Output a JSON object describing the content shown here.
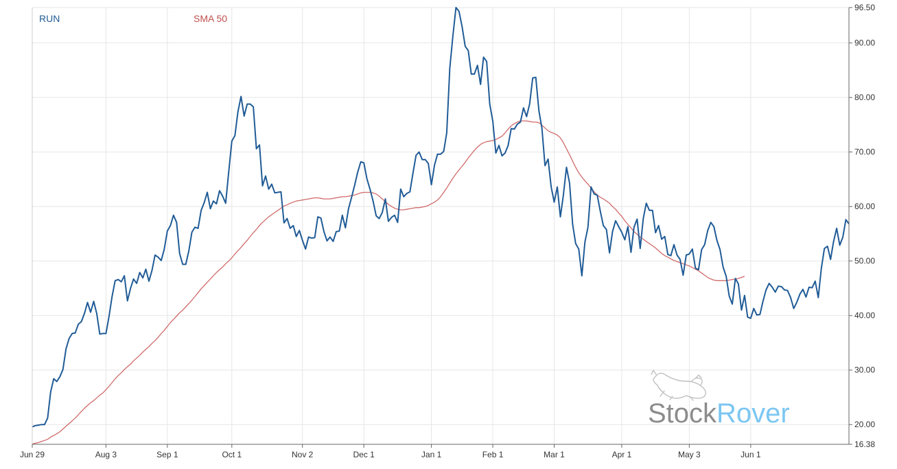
{
  "chart_data": {
    "type": "line",
    "ticker_label": "RUN",
    "x_tick_labels": [
      "Jun 29",
      "Aug 3",
      "Sep 1",
      "Oct 1",
      "Nov 2",
      "Dec 1",
      "Jan 1",
      "Feb 1",
      "Mar 1",
      "Apr 1",
      "May 3",
      "Jun 1"
    ],
    "y_tick_labels": [
      "96.50",
      "90.00",
      "80.00",
      "70.00",
      "60.00",
      "50.00",
      "40.00",
      "30.00",
      "20.00",
      "16.38"
    ],
    "ylim": [
      16.38,
      96.5
    ],
    "y_ticks": [
      96.5,
      90,
      80,
      70,
      60,
      50,
      40,
      30,
      20,
      16.38
    ],
    "grid": true,
    "legend_placement": "top-left",
    "series": [
      {
        "name": "RUN",
        "color": "#1f5b96",
        "values": [
          19.6,
          19.8,
          19.9,
          20.0,
          20.0,
          21.2,
          26.0,
          28.4,
          27.9,
          28.8,
          30.1,
          33.9,
          35.8,
          36.7,
          36.8,
          38.4,
          38.9,
          40.4,
          42.4,
          40.6,
          42.6,
          40.4,
          36.6,
          36.7,
          36.7,
          39.8,
          43.5,
          46.4,
          46.6,
          46.2,
          47.3,
          42.7,
          45.0,
          46.7,
          45.9,
          47.9,
          46.9,
          48.5,
          46.3,
          48.3,
          51.1,
          50.7,
          50.1,
          52.2,
          55.5,
          56.5,
          58.4,
          57.1,
          51.4,
          49.4,
          49.4,
          51.9,
          55.3,
          56.2,
          56.0,
          59.3,
          60.7,
          62.6,
          59.6,
          61.0,
          60.5,
          62.9,
          61.9,
          60.6,
          66.4,
          72.0,
          73.0,
          77.4,
          80.2,
          76.6,
          78.8,
          78.8,
          78.3,
          70.6,
          71.3,
          63.8,
          65.6,
          63.2,
          64.1,
          62.5,
          62.6,
          62.7,
          57.0,
          57.8,
          56.0,
          56.5,
          54.5,
          55.6,
          53.8,
          52.2,
          54.4,
          54.2,
          54.3,
          58.1,
          57.9,
          55.4,
          53.7,
          54.4,
          53.6,
          55.4,
          55.5,
          58.4,
          56.1,
          59.6,
          61.7,
          63.9,
          66.3,
          68.2,
          68.0,
          65.1,
          63.2,
          61.0,
          58.3,
          57.8,
          58.9,
          61.4,
          57.3,
          58.0,
          58.4,
          57.1,
          63.2,
          61.8,
          62.4,
          62.7,
          66.1,
          69.4,
          70.0,
          68.6,
          68.6,
          67.9,
          64.0,
          67.6,
          69.6,
          69.6,
          70.1,
          73.5,
          85.4,
          91.3,
          96.5,
          95.8,
          93.0,
          89.4,
          88.6,
          84.3,
          84.3,
          85.9,
          82.4,
          87.4,
          86.6,
          78.8,
          75.6,
          69.8,
          71.2,
          69.3,
          69.8,
          71.2,
          74.3,
          74.2,
          75.1,
          75.5,
          78.1,
          76.5,
          78.8,
          83.6,
          83.7,
          77.6,
          74.4,
          67.5,
          68.7,
          63.6,
          60.8,
          63.6,
          58.1,
          62.1,
          67.2,
          64.3,
          56.7,
          53.2,
          52.2,
          47.3,
          53.5,
          56.2,
          63.6,
          62.3,
          62.1,
          59.2,
          56.5,
          55.8,
          51.5,
          55.4,
          57.4,
          56.3,
          55.3,
          53.9,
          56.3,
          51.6,
          56.2,
          57.7,
          52.3,
          57.8,
          60.6,
          59.3,
          59.3,
          55.2,
          56.5,
          54.0,
          54.5,
          51.2,
          51.0,
          53.0,
          51.1,
          50.3,
          47.4,
          51.1,
          51.3,
          52.2,
          48.7,
          48.4,
          52.1,
          53.0,
          55.6,
          57.1,
          56.3,
          53.8,
          52.1,
          48.9,
          47.2,
          43.6,
          42.1,
          46.8,
          45.8,
          41.0,
          43.7,
          39.7,
          39.5,
          41.3,
          40.1,
          40.2,
          42.6,
          44.7,
          45.9,
          45.2,
          44.3,
          45.4,
          45.3,
          44.7,
          44.6,
          43.3,
          41.3,
          42.4,
          43.9,
          44.8,
          43.4,
          45.2,
          45.1,
          46.3,
          43.3,
          48.6,
          52.3,
          52.7,
          50.3,
          53.6,
          56.0,
          52.9,
          54.4,
          57.6,
          56.8
        ]
      },
      {
        "name": "SMA 50",
        "color": "#d06a6a",
        "values": [
          16.4,
          16.6,
          16.7,
          16.9,
          17.1,
          17.3,
          17.7,
          18.0,
          18.3,
          18.7,
          19.2,
          19.7,
          20.2,
          20.7,
          21.2,
          21.8,
          22.4,
          23.0,
          23.5,
          24.0,
          24.4,
          24.9,
          25.4,
          25.8,
          26.4,
          27.0,
          27.7,
          28.4,
          29.0,
          29.5,
          30.1,
          30.6,
          31.1,
          31.7,
          32.2,
          32.7,
          33.3,
          33.8,
          34.3,
          34.9,
          35.4,
          36.0,
          36.7,
          37.3,
          38.0,
          38.7,
          39.3,
          39.9,
          40.5,
          41.0,
          41.6,
          42.2,
          42.8,
          43.5,
          44.2,
          44.9,
          45.5,
          46.1,
          46.7,
          47.3,
          47.9,
          48.4,
          48.9,
          49.5,
          50.0,
          50.6,
          51.3,
          51.9,
          52.5,
          53.2,
          53.8,
          54.5,
          55.2,
          55.8,
          56.5,
          57.1,
          57.6,
          58.1,
          58.5,
          58.9,
          59.3,
          59.7,
          60.1,
          60.3,
          60.6,
          60.8,
          61.0,
          61.1,
          61.2,
          61.3,
          61.4,
          61.5,
          61.6,
          61.6,
          61.5,
          61.4,
          61.4,
          61.4,
          61.5,
          61.6,
          61.7,
          61.8,
          61.8,
          61.9,
          62.0,
          62.1,
          62.3,
          62.5,
          62.6,
          62.6,
          62.6,
          62.5,
          62.3,
          61.9,
          61.4,
          60.9,
          60.4,
          60.0,
          59.7,
          59.5,
          59.4,
          59.4,
          59.5,
          59.6,
          59.7,
          59.8,
          59.8,
          59.9,
          60.0,
          60.2,
          60.5,
          60.8,
          61.2,
          61.8,
          62.6,
          63.4,
          64.3,
          65.2,
          66.0,
          66.7,
          67.4,
          68.1,
          68.9,
          69.6,
          70.3,
          70.9,
          71.4,
          71.7,
          71.9,
          72.0,
          72.1,
          72.3,
          72.6,
          72.9,
          73.5,
          74.2,
          74.8,
          75.2,
          75.5,
          75.7,
          75.7,
          75.7,
          75.6,
          75.5,
          75.5,
          75.4,
          74.9,
          74.4,
          73.9,
          73.6,
          73.4,
          73.1,
          72.6,
          71.7,
          70.6,
          69.5,
          68.3,
          67.2,
          66.2,
          65.4,
          64.7,
          64.1,
          63.4,
          62.7,
          62.1,
          61.7,
          61.4,
          61.0,
          60.6,
          60.0,
          59.5,
          58.8,
          58.2,
          57.4,
          56.7,
          56.1,
          55.4,
          54.9,
          54.4,
          54.0,
          53.6,
          53.2,
          52.8,
          52.4,
          51.9,
          51.4,
          51.0,
          50.7,
          50.4,
          50.1,
          49.9,
          49.7,
          49.5,
          49.3,
          49.1,
          48.8,
          48.5,
          48.2,
          47.8,
          47.4,
          47.0,
          46.7,
          46.5,
          46.4,
          46.4,
          46.4,
          46.4,
          46.5,
          46.6,
          46.7,
          46.8,
          47.0,
          47.2
        ]
      }
    ]
  },
  "watermark": {
    "brand_part1": "Stock",
    "brand_part2": "Rover",
    "color1": "#8c8c8c",
    "color2": "#7cc6f2"
  },
  "colors": {
    "grid": "#e6e6e6",
    "axis": "#333333",
    "background": "#ffffff"
  }
}
